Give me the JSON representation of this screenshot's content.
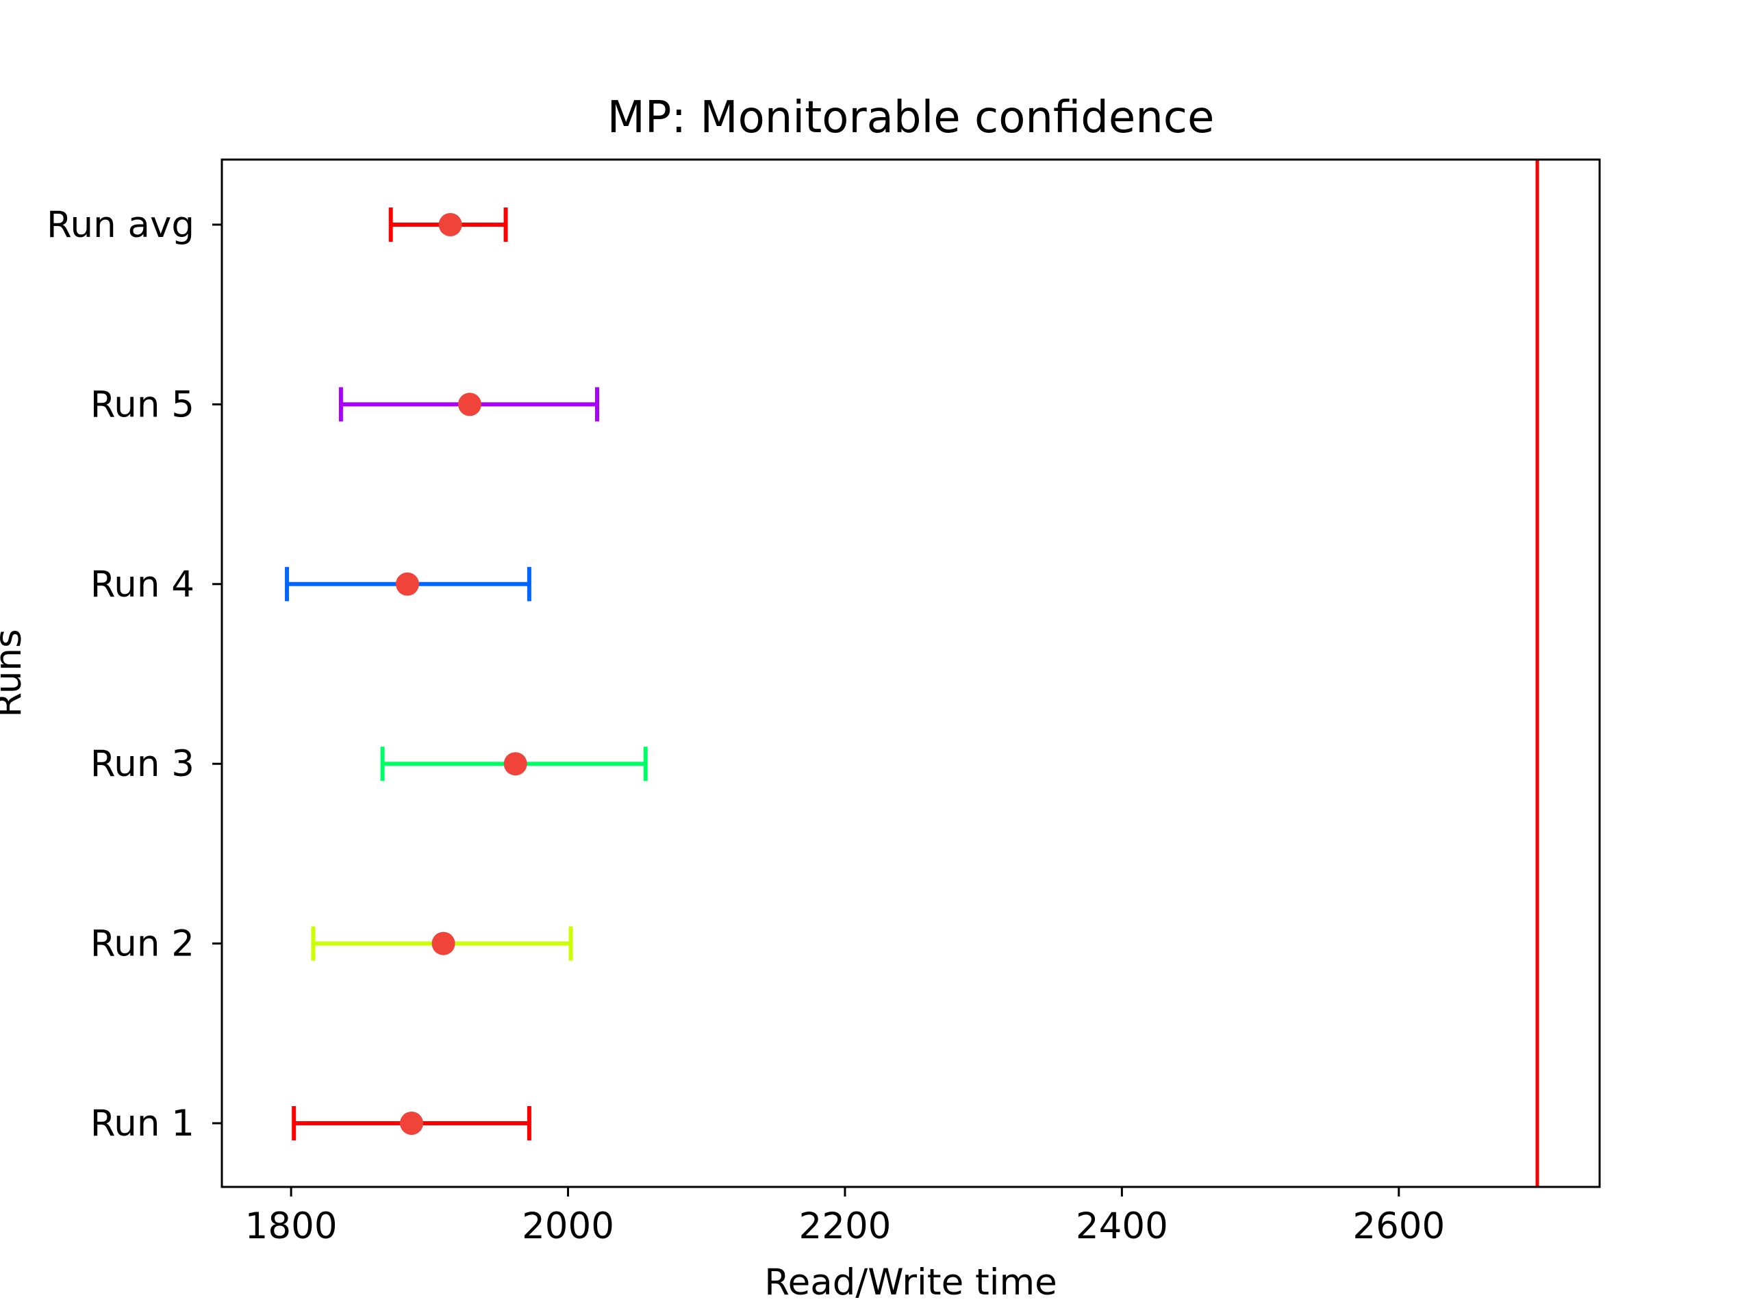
{
  "chart_data": {
    "type": "errorbar",
    "title": "MP: Monitorable confidence",
    "xlabel": "Read/Write time",
    "ylabel": "Runs",
    "xlim": [
      1750,
      2745
    ],
    "xticks": [
      1800,
      2000,
      2200,
      2400,
      2600
    ],
    "grid": false,
    "legend": "none",
    "marker_color": "#f0433a",
    "threshold": {
      "x": 2700,
      "color": "#ff0000"
    },
    "series": [
      {
        "category": "Run 1",
        "mean": 1887,
        "lower": 1802,
        "upper": 1972,
        "color": "#ff0000"
      },
      {
        "category": "Run 2",
        "mean": 1910,
        "lower": 1816,
        "upper": 2002,
        "color": "#ccff00"
      },
      {
        "category": "Run 3",
        "mean": 1962,
        "lower": 1866,
        "upper": 2056,
        "color": "#00ff66"
      },
      {
        "category": "Run 4",
        "mean": 1884,
        "lower": 1797,
        "upper": 1972,
        "color": "#0066ff"
      },
      {
        "category": "Run 5",
        "mean": 1929,
        "lower": 1836,
        "upper": 2021,
        "color": "#aa00ff"
      },
      {
        "category": "Run avg",
        "mean": 1915,
        "lower": 1872,
        "upper": 1955,
        "color": "#ff0000"
      }
    ]
  }
}
